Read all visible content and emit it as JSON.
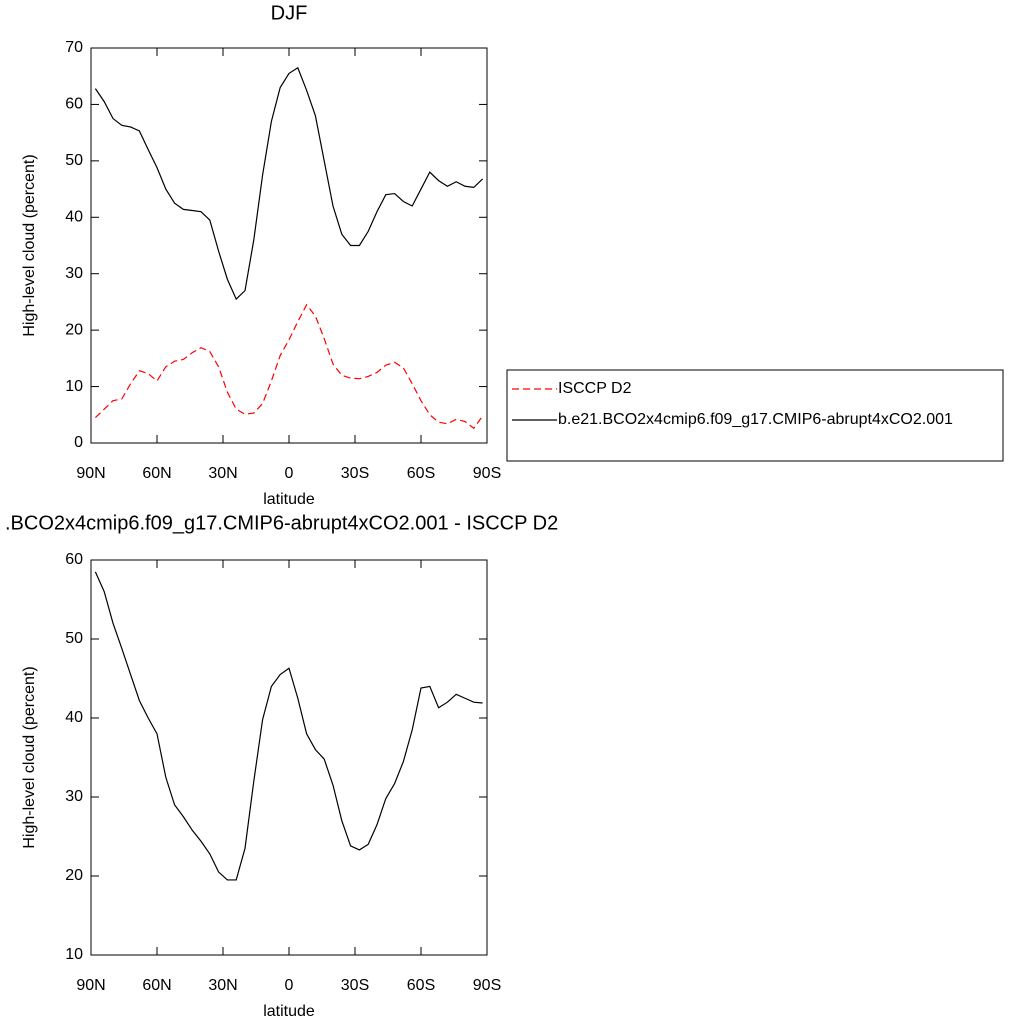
{
  "chart_data": [
    {
      "type": "line",
      "title": "DJF",
      "xlabel": "latitude",
      "ylabel": "High-level cloud (percent)",
      "x": [
        88,
        84,
        80,
        76,
        72,
        68,
        64,
        60,
        56,
        52,
        48,
        44,
        40,
        36,
        32,
        28,
        24,
        20,
        16,
        12,
        8,
        4,
        0,
        -4,
        -8,
        -12,
        -16,
        -20,
        -24,
        -28,
        -32,
        -36,
        -40,
        -44,
        -48,
        -52,
        -56,
        -60,
        -64,
        -68,
        -72,
        -76,
        -80,
        -84,
        -88
      ],
      "series": [
        {
          "name": "ISCCP D2",
          "color": "#ff0000",
          "linestyle": "dashed",
          "values": [
            4.5,
            6,
            7.5,
            7.8,
            10.5,
            12.8,
            12.3,
            11,
            13.5,
            14.5,
            14.8,
            16,
            16.9,
            16.2,
            13.5,
            9,
            6,
            5.1,
            5.3,
            7,
            11,
            15.5,
            18.3,
            21.5,
            24.5,
            22.5,
            18.5,
            14,
            12,
            11.5,
            11.4,
            11.8,
            12.5,
            13.8,
            14.3,
            13.3,
            10.5,
            7.5,
            5,
            3.7,
            3.4,
            4.2,
            3.8,
            2.6,
            4.8
          ]
        },
        {
          "name": "b.e21.BCO2x4cmip6.f09_g17.CMIP6-abrupt4xCO2.001",
          "color": "#000000",
          "linestyle": "solid",
          "values": [
            62.8,
            60.5,
            57.5,
            56.3,
            56,
            55.3,
            52,
            48.8,
            45,
            42.5,
            41.4,
            41.2,
            41,
            39.5,
            34,
            29,
            25.5,
            27,
            36,
            47.5,
            57,
            63,
            65.5,
            66.5,
            62.5,
            58,
            50,
            42,
            37,
            35,
            35,
            37.5,
            41,
            44,
            44.2,
            42.8,
            42,
            45,
            48,
            46.5,
            45.5,
            46.3,
            45.5,
            45.3,
            46.8
          ]
        }
      ],
      "xlim": [
        90,
        -90
      ],
      "xticks": [
        {
          "value": 90,
          "label": "90N"
        },
        {
          "value": 60,
          "label": "60N"
        },
        {
          "value": 30,
          "label": "30N"
        },
        0,
        {
          "value": -30,
          "label": "30S"
        },
        {
          "value": -60,
          "label": "60S"
        },
        {
          "value": -90,
          "label": "90S"
        }
      ],
      "ylim": [
        0,
        70
      ],
      "yticks": [
        0,
        10,
        20,
        30,
        40,
        50,
        60,
        70
      ],
      "grid": false,
      "legend": "right"
    },
    {
      "type": "line",
      "title": ".BCO2x4cmip6.f09_g17.CMIP6-abrupt4xCO2.001 - ISCCP D2",
      "xlabel": "latitude",
      "ylabel": "High-level cloud (percent)",
      "x": [
        88,
        84,
        80,
        76,
        72,
        68,
        64,
        60,
        56,
        52,
        48,
        44,
        40,
        36,
        32,
        28,
        24,
        20,
        16,
        12,
        8,
        4,
        0,
        -4,
        -8,
        -12,
        -16,
        -20,
        -24,
        -28,
        -32,
        -36,
        -40,
        -44,
        -48,
        -52,
        -56,
        -60,
        -64,
        -68,
        -72,
        -76,
        -80,
        -84,
        -88
      ],
      "series": [
        {
          "color": "#000000",
          "linestyle": "solid",
          "values": [
            58.5,
            56,
            52,
            48.8,
            45.5,
            42.2,
            40,
            38,
            32.5,
            29,
            27.5,
            25.8,
            24.4,
            22.8,
            20.5,
            19.5,
            19.5,
            23.5,
            32,
            39.8,
            44,
            45.5,
            46.3,
            42.5,
            38,
            36,
            34.8,
            31.5,
            27,
            23.8,
            23.3,
            24,
            26.5,
            29.8,
            31.7,
            34.5,
            38.5,
            43.8,
            44,
            41.3,
            42,
            43,
            42.5,
            42,
            41.9
          ]
        }
      ],
      "xlim": [
        90,
        -90
      ],
      "xticks": [
        {
          "value": 90,
          "label": "90N"
        },
        {
          "value": 60,
          "label": "60N"
        },
        {
          "value": 30,
          "label": "30N"
        },
        0,
        {
          "value": -30,
          "label": "30S"
        },
        {
          "value": -60,
          "label": "60S"
        },
        {
          "value": -90,
          "label": "90S"
        }
      ],
      "ylim": [
        10,
        60
      ],
      "yticks": [
        10,
        20,
        30,
        40,
        50,
        60
      ],
      "grid": false
    }
  ]
}
